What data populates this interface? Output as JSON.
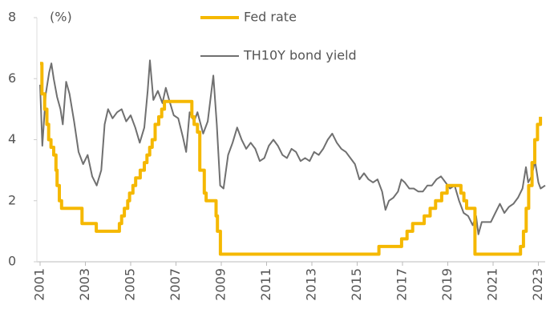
{
  "chart_data": {
    "type": "line",
    "y_axis_label": "(%)",
    "legend": "top",
    "xlim": [
      2001,
      2023.3
    ],
    "xticks": [
      2001,
      2003,
      2005,
      2007,
      2009,
      2011,
      2013,
      2015,
      2017,
      2019,
      2021,
      2023
    ],
    "ylim": [
      0,
      8
    ],
    "yticks": [
      0,
      2,
      4,
      6,
      8
    ],
    "series": [
      {
        "name": "Fed rate",
        "color": "#f5b800",
        "step": "post",
        "x": [
          2001.0,
          2001.08,
          2001.2,
          2001.3,
          2001.38,
          2001.48,
          2001.6,
          2001.7,
          2001.75,
          2001.85,
          2001.95,
          2002.85,
          2003.48,
          2004.5,
          2004.6,
          2004.72,
          2004.87,
          2004.95,
          2005.1,
          2005.22,
          2005.42,
          2005.6,
          2005.72,
          2005.84,
          2005.95,
          2006.08,
          2006.24,
          2006.37,
          2006.49,
          2007.7,
          2007.8,
          2007.95,
          2008.05,
          2008.25,
          2008.33,
          2008.77,
          2008.83,
          2008.96,
          2015.96,
          2016.96,
          2017.2,
          2017.45,
          2017.96,
          2018.22,
          2018.46,
          2018.73,
          2018.97,
          2019.58,
          2019.71,
          2019.83,
          2020.2,
          2022.21,
          2022.34,
          2022.46,
          2022.57,
          2022.72,
          2022.84,
          2022.96,
          2023.09
        ],
        "values": [
          6.5,
          5.5,
          5.0,
          4.5,
          4.0,
          3.75,
          3.5,
          3.0,
          2.5,
          2.0,
          1.75,
          1.25,
          1.0,
          1.25,
          1.5,
          1.75,
          2.0,
          2.25,
          2.5,
          2.75,
          3.0,
          3.25,
          3.5,
          3.75,
          4.0,
          4.5,
          4.75,
          5.0,
          5.25,
          4.75,
          4.5,
          4.25,
          3.0,
          2.25,
          2.0,
          1.5,
          1.0,
          0.25,
          0.5,
          0.75,
          1.0,
          1.25,
          1.5,
          1.75,
          2.0,
          2.25,
          2.5,
          2.25,
          2.0,
          1.75,
          0.25,
          0.5,
          1.0,
          1.75,
          2.5,
          3.25,
          4.0,
          4.5,
          4.75
        ]
      },
      {
        "name": "TH10Y bond yield",
        "color": "#707070",
        "x": [
          2001.0,
          2001.1,
          2001.25,
          2001.4,
          2001.5,
          2001.6,
          2001.75,
          2001.9,
          2002.0,
          2002.15,
          2002.3,
          2002.5,
          2002.7,
          2002.9,
          2003.1,
          2003.3,
          2003.5,
          2003.7,
          2003.85,
          2004.0,
          2004.2,
          2004.4,
          2004.6,
          2004.8,
          2005.0,
          2005.2,
          2005.4,
          2005.6,
          2005.75,
          2005.85,
          2006.0,
          2006.2,
          2006.4,
          2006.55,
          2006.7,
          2006.9,
          2007.1,
          2007.3,
          2007.45,
          2007.6,
          2007.8,
          2007.95,
          2008.2,
          2008.4,
          2008.55,
          2008.65,
          2008.8,
          2008.95,
          2009.1,
          2009.3,
          2009.5,
          2009.7,
          2009.9,
          2010.1,
          2010.3,
          2010.5,
          2010.7,
          2010.9,
          2011.1,
          2011.3,
          2011.5,
          2011.7,
          2011.9,
          2012.1,
          2012.3,
          2012.5,
          2012.7,
          2012.9,
          2013.1,
          2013.3,
          2013.5,
          2013.7,
          2013.9,
          2014.1,
          2014.3,
          2014.5,
          2014.7,
          2014.9,
          2015.1,
          2015.3,
          2015.5,
          2015.7,
          2015.9,
          2016.1,
          2016.25,
          2016.4,
          2016.6,
          2016.8,
          2016.95,
          2017.1,
          2017.3,
          2017.5,
          2017.7,
          2017.9,
          2018.1,
          2018.3,
          2018.5,
          2018.7,
          2018.9,
          2019.1,
          2019.3,
          2019.5,
          2019.7,
          2019.9,
          2020.1,
          2020.25,
          2020.35,
          2020.5,
          2020.7,
          2020.9,
          2021.1,
          2021.3,
          2021.5,
          2021.7,
          2021.9,
          2022.1,
          2022.3,
          2022.45,
          2022.55,
          2022.7,
          2022.85,
          2023.0,
          2023.1,
          2023.3
        ],
        "values": [
          5.8,
          3.8,
          5.5,
          6.2,
          6.5,
          6.0,
          5.4,
          5.0,
          4.5,
          5.9,
          5.5,
          4.6,
          3.6,
          3.2,
          3.5,
          2.8,
          2.5,
          3.0,
          4.5,
          5.0,
          4.7,
          4.9,
          5.0,
          4.6,
          4.8,
          4.4,
          3.9,
          4.4,
          5.6,
          6.6,
          5.3,
          5.6,
          5.2,
          5.7,
          5.3,
          4.8,
          4.7,
          4.1,
          3.6,
          4.9,
          4.6,
          4.9,
          4.2,
          4.6,
          5.5,
          6.1,
          4.5,
          2.5,
          2.4,
          3.5,
          3.9,
          4.4,
          4.0,
          3.7,
          3.9,
          3.7,
          3.3,
          3.4,
          3.8,
          4.0,
          3.8,
          3.5,
          3.4,
          3.7,
          3.6,
          3.3,
          3.4,
          3.3,
          3.6,
          3.5,
          3.7,
          4.0,
          4.2,
          3.9,
          3.7,
          3.6,
          3.4,
          3.2,
          2.7,
          2.9,
          2.7,
          2.6,
          2.7,
          2.3,
          1.7,
          2.0,
          2.1,
          2.3,
          2.7,
          2.6,
          2.4,
          2.4,
          2.3,
          2.3,
          2.5,
          2.5,
          2.7,
          2.8,
          2.6,
          2.4,
          2.5,
          2.0,
          1.6,
          1.5,
          1.2,
          1.5,
          0.9,
          1.3,
          1.3,
          1.3,
          1.6,
          1.9,
          1.6,
          1.8,
          1.9,
          2.1,
          2.4,
          3.1,
          2.6,
          2.8,
          3.3,
          2.6,
          2.4,
          2.5
        ]
      }
    ]
  }
}
